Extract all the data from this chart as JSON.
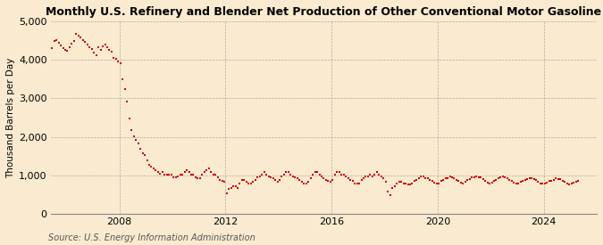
{
  "title": "Monthly U.S. Refinery and Blender Net Production of Other Conventional Motor Gasoline",
  "ylabel": "Thousand Barrels per Day",
  "source": "Source: U.S. Energy Information Administration",
  "background_color": "#faebd0",
  "line_color": "#cc0000",
  "marker": "s",
  "marker_size": 2.0,
  "ylim": [
    0,
    5000
  ],
  "yticks": [
    0,
    1000,
    2000,
    3000,
    4000,
    5000
  ],
  "ytick_labels": [
    "0",
    "1,000",
    "2,000",
    "3,000",
    "4,000",
    "5,000"
  ],
  "xtick_years": [
    2008,
    2012,
    2016,
    2020,
    2024
  ],
  "xlim_start": [
    2005,
    6
  ],
  "xlim_end": [
    2026,
    1
  ],
  "start_year": 2005,
  "start_month": 1,
  "title_fontsize": 9,
  "tick_fontsize": 8,
  "ylabel_fontsize": 7.5,
  "source_fontsize": 7,
  "data_values": [
    4350,
    4380,
    4300,
    4150,
    4250,
    4300,
    4480,
    4520,
    4450,
    4380,
    4300,
    4260,
    4230,
    4320,
    4420,
    4480,
    4680,
    4620,
    4580,
    4520,
    4470,
    4400,
    4330,
    4280,
    4180,
    4120,
    4320,
    4260,
    4350,
    4390,
    4320,
    4260,
    4200,
    4050,
    4020,
    3960,
    3920,
    3500,
    3230,
    2920,
    2480,
    2180,
    2020,
    1920,
    1820,
    1680,
    1580,
    1530,
    1380,
    1280,
    1230,
    1180,
    1130,
    1080,
    1040,
    1080,
    1030,
    1030,
    1020,
    1020,
    960,
    940,
    980,
    1030,
    1030,
    1080,
    1130,
    1080,
    1030,
    1020,
    960,
    930,
    930,
    1020,
    1080,
    1130,
    1180,
    1080,
    1030,
    1030,
    960,
    880,
    850,
    830,
    540,
    640,
    680,
    730,
    730,
    680,
    780,
    880,
    880,
    830,
    800,
    780,
    830,
    880,
    960,
    980,
    1030,
    1080,
    1030,
    980,
    960,
    930,
    880,
    830,
    880,
    980,
    1030,
    1080,
    1080,
    1030,
    980,
    960,
    930,
    880,
    830,
    780,
    780,
    830,
    930,
    1030,
    1080,
    1080,
    1030,
    980,
    930,
    880,
    850,
    830,
    880,
    1030,
    1080,
    1080,
    1030,
    1030,
    980,
    930,
    880,
    850,
    800,
    780,
    800,
    880,
    930,
    980,
    980,
    1030,
    980,
    1030,
    1080,
    1030,
    980,
    930,
    830,
    580,
    480,
    680,
    730,
    780,
    830,
    830,
    800,
    780,
    760,
    760,
    780,
    850,
    880,
    930,
    980,
    980,
    930,
    930,
    880,
    850,
    810,
    790,
    800,
    850,
    880,
    930,
    930,
    980,
    960,
    930,
    880,
    850,
    810,
    780,
    830,
    880,
    910,
    950,
    960,
    980,
    960,
    940,
    900,
    860,
    820,
    800,
    810,
    850,
    890,
    930,
    940,
    970,
    950,
    930,
    890,
    850,
    810,
    790,
    800,
    830,
    860,
    880,
    900,
    930,
    920,
    910,
    880,
    840,
    800,
    780,
    790,
    820,
    850,
    870,
    890,
    920,
    910,
    900,
    870,
    830,
    790,
    770,
    780,
    810,
    840,
    860
  ]
}
